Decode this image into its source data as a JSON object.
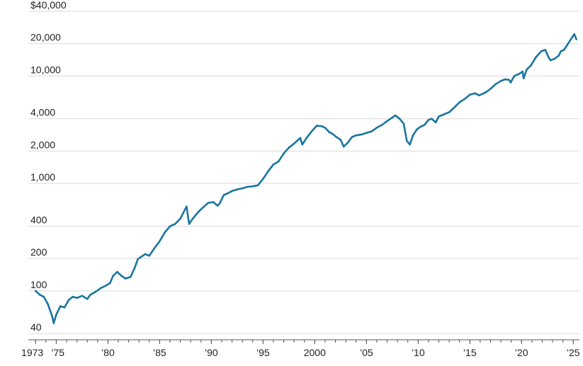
{
  "chart_data": {
    "type": "line",
    "title": "",
    "xlabel": "",
    "ylabel": "",
    "y_scale": "log",
    "ylim": [
      35,
      40000
    ],
    "xlim": [
      1972.3,
      2025.6
    ],
    "y_ticks": [
      {
        "value": 40000,
        "label": "$40,000"
      },
      {
        "value": 20000,
        "label": "20,000"
      },
      {
        "value": 10000,
        "label": "10,000"
      },
      {
        "value": 4000,
        "label": "4,000"
      },
      {
        "value": 2000,
        "label": "2,000"
      },
      {
        "value": 1000,
        "label": "1,000"
      },
      {
        "value": 400,
        "label": "400"
      },
      {
        "value": 200,
        "label": "200"
      },
      {
        "value": 100,
        "label": "100"
      },
      {
        "value": 40,
        "label": "40"
      }
    ],
    "x_ticks": [
      {
        "value": 1973,
        "label": "1973"
      },
      {
        "value": 1975,
        "label": "’75"
      },
      {
        "value": 1980,
        "label": "’80"
      },
      {
        "value": 1985,
        "label": "’85"
      },
      {
        "value": 1990,
        "label": "’90"
      },
      {
        "value": 1995,
        "label": "’95"
      },
      {
        "value": 2000,
        "label": "2000"
      },
      {
        "value": 2005,
        "label": "’05"
      },
      {
        "value": 2010,
        "label": "’10"
      },
      {
        "value": 2015,
        "label": "’15"
      },
      {
        "value": 2020,
        "label": "’20"
      },
      {
        "value": 2025,
        "label": "’25"
      }
    ],
    "grid": true,
    "legend": "none",
    "line_color": "#1a75a0",
    "series": [
      {
        "x": [
          1973.0,
          1973.4,
          1973.8,
          1974.2,
          1974.6,
          1974.75,
          1975.0,
          1975.4,
          1975.8,
          1976.2,
          1976.6,
          1977.0,
          1977.5,
          1978.0,
          1978.3,
          1978.8,
          1979.3,
          1979.8,
          1980.2,
          1980.5,
          1980.9,
          1981.3,
          1981.7,
          1982.2,
          1982.6,
          1982.9,
          1983.3,
          1983.6,
          1984.0,
          1984.5,
          1985.0,
          1985.5,
          1986.0,
          1986.5,
          1987.0,
          1987.6,
          1987.85,
          1988.2,
          1988.8,
          1989.3,
          1989.7,
          1990.2,
          1990.6,
          1990.8,
          1991.2,
          1991.6,
          1992.0,
          1992.5,
          1993.0,
          1993.5,
          1994.0,
          1994.5,
          1995.0,
          1995.5,
          1996.0,
          1996.5,
          1997.0,
          1997.5,
          1998.0,
          1998.6,
          1998.8,
          1999.2,
          1999.7,
          2000.2,
          2000.7,
          2001.0,
          2001.4,
          2001.7,
          2002.1,
          2002.5,
          2002.8,
          2003.2,
          2003.6,
          2004.0,
          2004.5,
          2005.0,
          2005.5,
          2006.0,
          2006.5,
          2007.0,
          2007.5,
          2007.8,
          2008.2,
          2008.6,
          2008.9,
          2009.2,
          2009.5,
          2009.9,
          2010.3,
          2010.6,
          2011.0,
          2011.3,
          2011.7,
          2012.0,
          2012.5,
          2013.0,
          2013.5,
          2014.0,
          2014.5,
          2015.0,
          2015.5,
          2015.9,
          2016.2,
          2016.6,
          2017.0,
          2017.5,
          2018.0,
          2018.4,
          2018.8,
          2018.95,
          2019.3,
          2019.8,
          2020.1,
          2020.2,
          2020.5,
          2020.9,
          2021.4,
          2021.9,
          2022.3,
          2022.6,
          2022.8,
          2023.2,
          2023.6,
          2023.8,
          2024.1,
          2024.5,
          2024.9,
          2025.1,
          2025.3
        ],
        "values": [
          100,
          92,
          88,
          75,
          58,
          50,
          60,
          72,
          70,
          82,
          88,
          86,
          90,
          84,
          92,
          98,
          106,
          112,
          118,
          138,
          150,
          138,
          130,
          135,
          165,
          198,
          210,
          220,
          212,
          250,
          290,
          350,
          400,
          420,
          470,
          610,
          420,
          470,
          550,
          610,
          660,
          670,
          620,
          650,
          780,
          810,
          850,
          880,
          900,
          930,
          940,
          960,
          1100,
          1300,
          1500,
          1600,
          1900,
          2150,
          2350,
          2650,
          2300,
          2650,
          3050,
          3450,
          3400,
          3300,
          3000,
          2900,
          2700,
          2550,
          2200,
          2400,
          2700,
          2800,
          2850,
          2950,
          3050,
          3300,
          3500,
          3800,
          4100,
          4300,
          4000,
          3600,
          2500,
          2300,
          2800,
          3200,
          3400,
          3500,
          3900,
          4000,
          3700,
          4200,
          4400,
          4600,
          5100,
          5700,
          6100,
          6700,
          6900,
          6600,
          6800,
          7100,
          7600,
          8400,
          9000,
          9300,
          9200,
          8700,
          10000,
          10500,
          11000,
          9500,
          11500,
          12500,
          15000,
          17000,
          17500,
          15000,
          14000,
          14500,
          15500,
          17000,
          17500,
          20000,
          23000,
          24500,
          22000
        ]
      }
    ]
  }
}
